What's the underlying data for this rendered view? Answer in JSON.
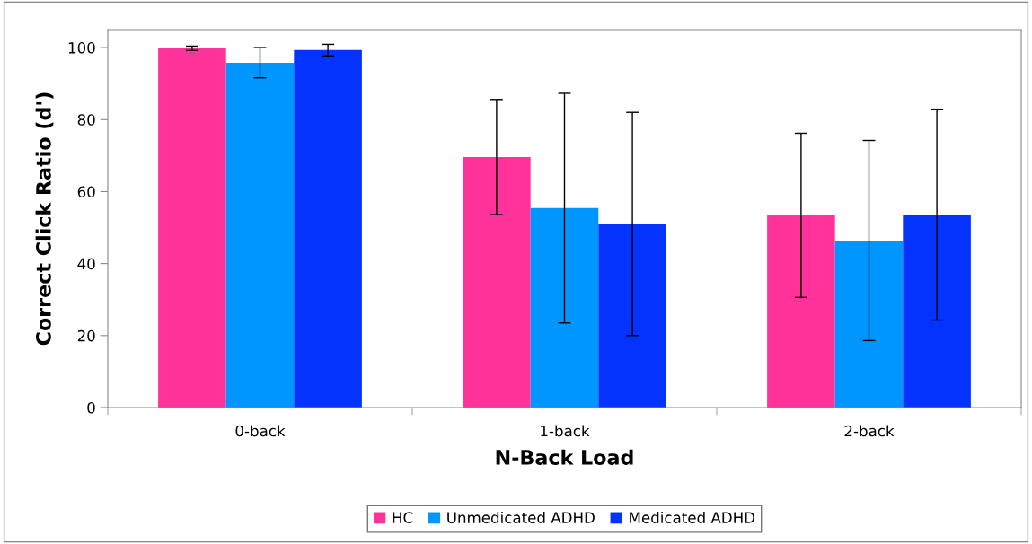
{
  "chart_data": {
    "type": "bar",
    "xlabel": "N-Back Load",
    "ylabel": "Correct Click Ratio (d')",
    "categories": [
      "0-back",
      "1-back",
      "2-back"
    ],
    "series": [
      {
        "name": "HC",
        "color": "#ff3399",
        "values": [
          99.8,
          69.6,
          53.4
        ],
        "errors": [
          0.6,
          16,
          22.8
        ]
      },
      {
        "name": "Unmedicated ADHD",
        "color": "#0096ff",
        "values": [
          95.8,
          55.4,
          46.4
        ],
        "errors": [
          4.2,
          31.9,
          27.8
        ]
      },
      {
        "name": "Medicated ADHD",
        "color": "#0433ff",
        "values": [
          99.3,
          51.0,
          53.6
        ],
        "errors": [
          1.6,
          31,
          29.3
        ]
      }
    ],
    "ylim": [
      0,
      105
    ],
    "yticks": [
      0,
      20,
      40,
      60,
      80,
      100
    ],
    "grid": false,
    "legend": "bottom"
  }
}
